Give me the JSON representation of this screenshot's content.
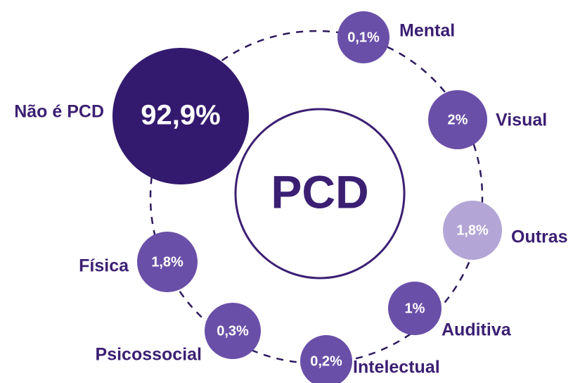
{
  "center": "PCD",
  "nodes": [
    {
      "label": "Não é PCD",
      "value": "92,9%"
    },
    {
      "label": "Mental",
      "value": "0,1%"
    },
    {
      "label": "Visual",
      "value": "2%"
    },
    {
      "label": "Outras",
      "value": "1,8%"
    },
    {
      "label": "Auditiva",
      "value": "1%"
    },
    {
      "label": "Intelectual",
      "value": "0,2%"
    },
    {
      "label": "Psicossocial",
      "value": "0,3%"
    },
    {
      "label": "Física",
      "value": "1,8%"
    }
  ]
}
